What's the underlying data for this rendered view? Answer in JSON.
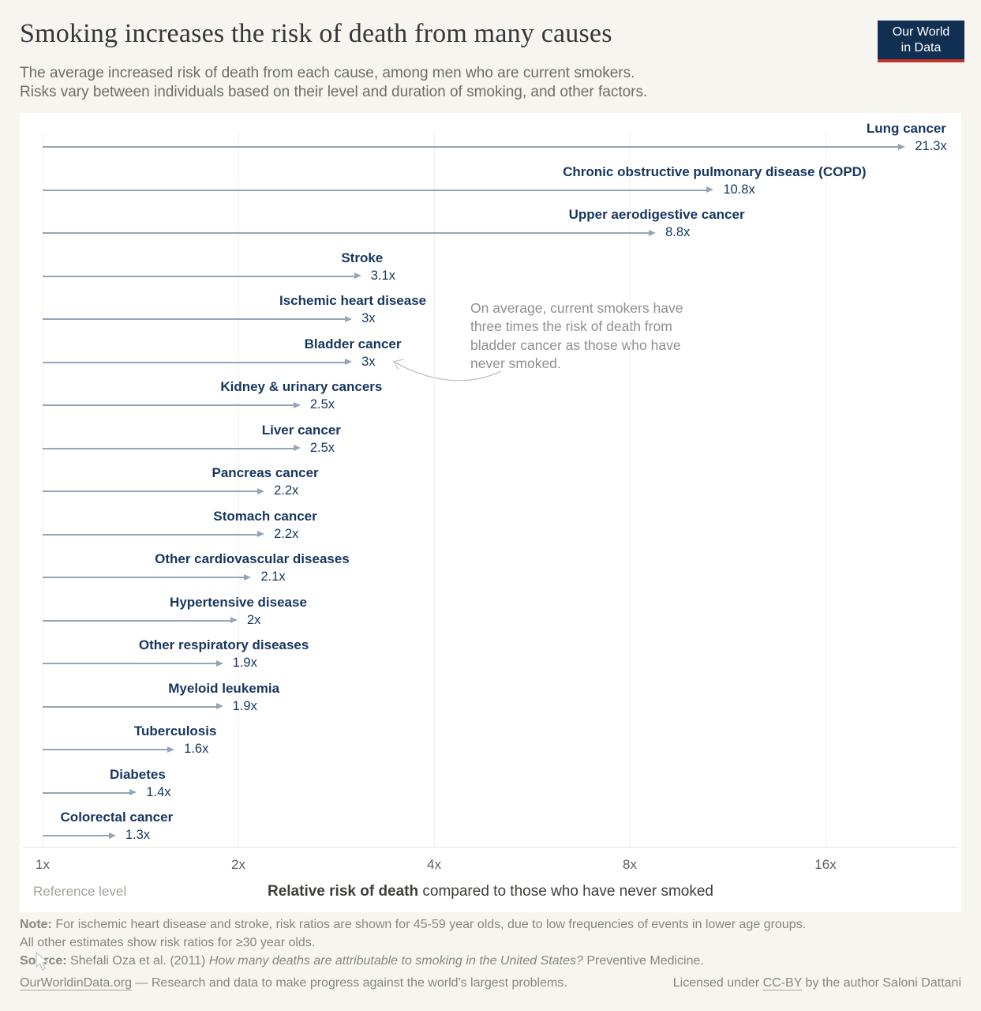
{
  "header": {
    "title": "Smoking increases the risk of death from many causes",
    "subtitle_line1": "The average increased risk of death from each cause, among men who are current smokers.",
    "subtitle_line2": "Risks vary between individuals based on their level and duration of smoking, and other factors.",
    "logo_line1": "Our World",
    "logo_line2": "in Data"
  },
  "chart_data": {
    "type": "bar",
    "variant": "horizontal-arrow",
    "title": "Smoking increases the risk of death from many causes",
    "x_scale": "log2",
    "xlim": [
      1,
      24
    ],
    "grid": "vertical-on",
    "x_ticks": [
      "1x",
      "2x",
      "4x",
      "8x",
      "16x"
    ],
    "x_tick_values": [
      1,
      2,
      4,
      8,
      16
    ],
    "reference_label": "Reference level",
    "xlabel_bold": "Relative risk of death",
    "xlabel_rest": " compared to those who have never smoked",
    "series": [
      {
        "label": "Lung cancer",
        "value": 21.3,
        "display": "21.3x"
      },
      {
        "label": "Chronic obstructive pulmonary disease (COPD)",
        "value": 10.8,
        "display": "10.8x"
      },
      {
        "label": "Upper aerodigestive cancer",
        "value": 8.8,
        "display": "8.8x"
      },
      {
        "label": "Stroke",
        "value": 3.1,
        "display": "3.1x"
      },
      {
        "label": "Ischemic heart disease",
        "value": 3,
        "display": "3x"
      },
      {
        "label": "Bladder cancer",
        "value": 3,
        "display": "3x"
      },
      {
        "label": "Kidney & urinary cancers",
        "value": 2.5,
        "display": "2.5x"
      },
      {
        "label": "Liver cancer",
        "value": 2.5,
        "display": "2.5x"
      },
      {
        "label": "Pancreas cancer",
        "value": 2.2,
        "display": "2.2x"
      },
      {
        "label": "Stomach cancer",
        "value": 2.2,
        "display": "2.2x"
      },
      {
        "label": "Other cardiovascular diseases",
        "value": 2.1,
        "display": "2.1x"
      },
      {
        "label": "Hypertensive disease",
        "value": 2,
        "display": "2x"
      },
      {
        "label": "Other respiratory diseases",
        "value": 1.9,
        "display": "1.9x"
      },
      {
        "label": "Myeloid leukemia",
        "value": 1.9,
        "display": "1.9x"
      },
      {
        "label": "Tuberculosis",
        "value": 1.6,
        "display": "1.6x"
      },
      {
        "label": "Diabetes",
        "value": 1.4,
        "display": "1.4x"
      },
      {
        "label": "Colorectal cancer",
        "value": 1.3,
        "display": "1.3x"
      }
    ],
    "annotation": {
      "lines": [
        "On average, current smokers have",
        "three times the risk of death from",
        "bladder cancer as those who have",
        "never smoked."
      ],
      "points_to": "Bladder cancer"
    }
  },
  "footer": {
    "note_label": "Note:",
    "note_line1_rest": " For ischemic heart disease and stroke, risk ratios are shown for 45-59 year olds, due to low frequencies of events in lower age groups.",
    "note_line2": "All other estimates show risk ratios for ≥30 year olds.",
    "source_label": "Source:",
    "source_pre": " Shefali Oza et al. (2011) ",
    "source_italic": "How many deaths are attributable to smoking in the United States?",
    "source_post": " Preventive Medicine.",
    "owid_link": "OurWorldinData.org",
    "tagline": " — Research and data to make progress against the world's largest problems.",
    "license_pre": "Licensed under ",
    "license_link": "CC-BY",
    "license_post": " by the author Saloni Dattani"
  },
  "colors": {
    "page_background": "#f7f5ef",
    "plot_background": "#ffffff",
    "label_navy": "#16365e",
    "arrow_gray_blue": "#95a4b7",
    "annotation_gray": "#8f8f8f",
    "logo_navy": "#112f52",
    "logo_red": "#bf352b",
    "gridline": "#f1efec"
  }
}
